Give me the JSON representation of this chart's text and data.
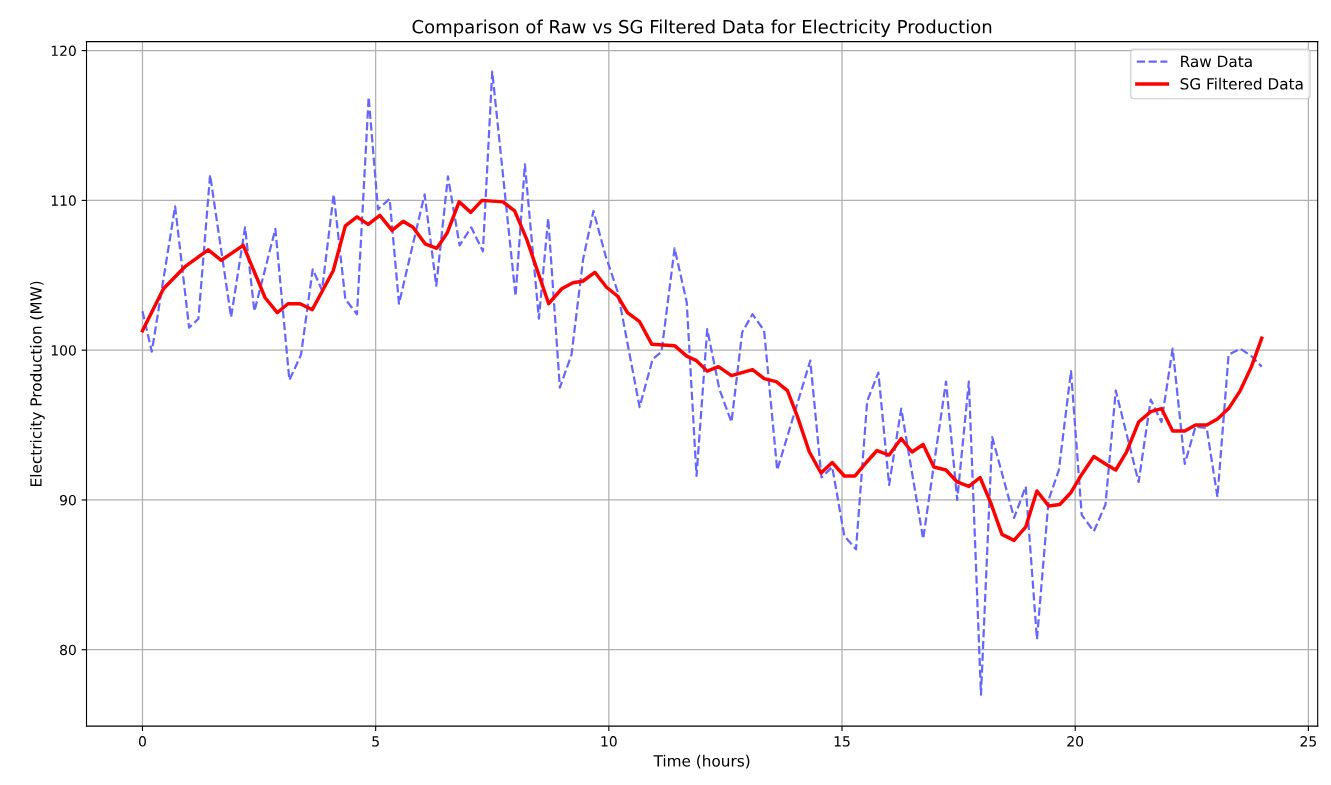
{
  "chart_data": {
    "type": "line",
    "title": "Comparison of Raw vs SG Filtered Data for Electricity Production",
    "xlabel": "Time (hours)",
    "ylabel": "Electricity Production (MW)",
    "xlim": [
      -1.2,
      25.2
    ],
    "ylim": [
      74.9,
      120.6
    ],
    "xticks": [
      0,
      5,
      10,
      15,
      20,
      25
    ],
    "yticks": [
      80,
      90,
      100,
      110,
      120
    ],
    "grid": true,
    "legend": "top right",
    "series": [
      {
        "name": "Raw Data",
        "color": "#6666ff",
        "line_style": "dashed",
        "x": [
          0,
          0.2,
          0.7,
          1.0,
          1.2,
          1.45,
          1.9,
          2.2,
          2.4,
          2.85,
          3.15,
          3.4,
          3.65,
          3.85,
          4.1,
          4.35,
          4.6,
          4.85,
          5.05,
          5.3,
          5.5,
          6.05,
          6.3,
          6.55,
          6.8,
          7.05,
          7.3,
          7.5,
          8.0,
          8.2,
          8.5,
          8.7,
          8.95,
          9.2,
          9.45,
          9.67,
          9.93,
          10.19,
          10.66,
          10.94,
          11.13,
          11.41,
          11.67,
          11.88,
          12.11,
          12.37,
          12.63,
          12.86,
          13.08,
          13.33,
          13.61,
          14.32,
          14.56,
          14.79,
          15.05,
          15.3,
          15.54,
          15.78,
          16.01,
          16.27,
          16.74,
          17.23,
          17.47,
          17.72,
          17.98,
          18.22,
          18.69,
          18.94,
          19.18,
          19.43,
          19.65,
          19.91,
          20.14,
          20.4,
          20.65,
          20.87,
          21.36,
          21.62,
          21.85,
          22.09,
          22.35,
          22.58,
          22.82,
          23.05,
          23.29,
          23.54,
          23.78,
          24.0
        ],
        "values": [
          102.6,
          99.9,
          109.6,
          101.5,
          102.1,
          111.7,
          102.2,
          108.2,
          102.6,
          108.1,
          98.0,
          99.7,
          105.4,
          104.0,
          110.4,
          103.4,
          102.4,
          116.9,
          109.4,
          110.1,
          103.1,
          110.4,
          104.3,
          111.6,
          107.0,
          108.2,
          106.6,
          118.6,
          103.6,
          112.4,
          102.1,
          108.8,
          97.5,
          99.7,
          106.1,
          109.3,
          106.3,
          103.9,
          96.2,
          99.4,
          99.9,
          106.8,
          103.2,
          91.6,
          101.4,
          97.4,
          95.2,
          101.2,
          102.4,
          101.3,
          92.0,
          99.3,
          91.5,
          92.2,
          87.6,
          86.7,
          96.6,
          98.5,
          91.0,
          96.1,
          87.4,
          97.9,
          90.0,
          97.9,
          77.0,
          94.2,
          88.8,
          90.9,
          80.7,
          90.0,
          92.0,
          98.6,
          89.0,
          87.9,
          89.7,
          97.3,
          91.2,
          96.7,
          95.2,
          100.1,
          92.4,
          94.9,
          94.8,
          90.2,
          99.7,
          100.1,
          99.6,
          98.9
        ]
      },
      {
        "name": "SG Filtered Data",
        "color": "#ff0000",
        "line_style": "solid",
        "x": [
          0,
          0.45,
          0.92,
          1.41,
          1.69,
          2.16,
          2.63,
          2.89,
          3.12,
          3.38,
          3.64,
          4.09,
          4.35,
          4.6,
          4.84,
          5.09,
          5.35,
          5.59,
          5.8,
          6.06,
          6.31,
          6.53,
          6.79,
          7.04,
          7.28,
          7.73,
          7.98,
          8.24,
          8.48,
          8.71,
          8.99,
          9.23,
          9.44,
          9.7,
          9.95,
          10.19,
          10.4,
          10.66,
          10.92,
          11.41,
          11.67,
          11.88,
          12.11,
          12.35,
          12.63,
          13.08,
          13.33,
          13.59,
          13.83,
          14.04,
          14.3,
          14.55,
          14.79,
          15.05,
          15.28,
          15.52,
          15.75,
          16.01,
          16.27,
          16.5,
          16.74,
          16.97,
          17.23,
          17.47,
          17.72,
          17.96,
          18.19,
          18.43,
          18.69,
          18.94,
          19.18,
          19.43,
          19.67,
          19.91,
          20.14,
          20.4,
          20.65,
          20.87,
          21.1,
          21.36,
          21.62,
          21.85,
          22.09,
          22.35,
          22.58,
          22.82,
          23.05,
          23.29,
          23.54,
          23.78,
          24.0
        ],
        "values": [
          101.3,
          104.1,
          105.6,
          106.7,
          106.0,
          107.0,
          103.5,
          102.5,
          103.1,
          103.1,
          102.7,
          105.3,
          108.3,
          108.9,
          108.4,
          109.0,
          108.0,
          108.6,
          108.2,
          107.1,
          106.8,
          107.8,
          109.9,
          109.2,
          110.0,
          109.9,
          109.3,
          107.4,
          105.2,
          103.1,
          104.1,
          104.5,
          104.6,
          105.2,
          104.2,
          103.6,
          102.5,
          101.9,
          100.4,
          100.3,
          99.6,
          99.3,
          98.6,
          98.9,
          98.3,
          98.7,
          98.1,
          97.9,
          97.3,
          95.6,
          93.2,
          91.8,
          92.5,
          91.6,
          91.6,
          92.5,
          93.3,
          93.0,
          94.1,
          93.2,
          93.7,
          92.2,
          92.0,
          91.2,
          90.9,
          91.5,
          89.8,
          87.7,
          87.3,
          88.2,
          90.6,
          89.6,
          89.7,
          90.5,
          91.7,
          92.9,
          92.4,
          92.0,
          93.2,
          95.2,
          95.9,
          96.1,
          94.6,
          94.6,
          95.0,
          95.0,
          95.4,
          96.1,
          97.3,
          98.9,
          100.8
        ]
      }
    ]
  }
}
